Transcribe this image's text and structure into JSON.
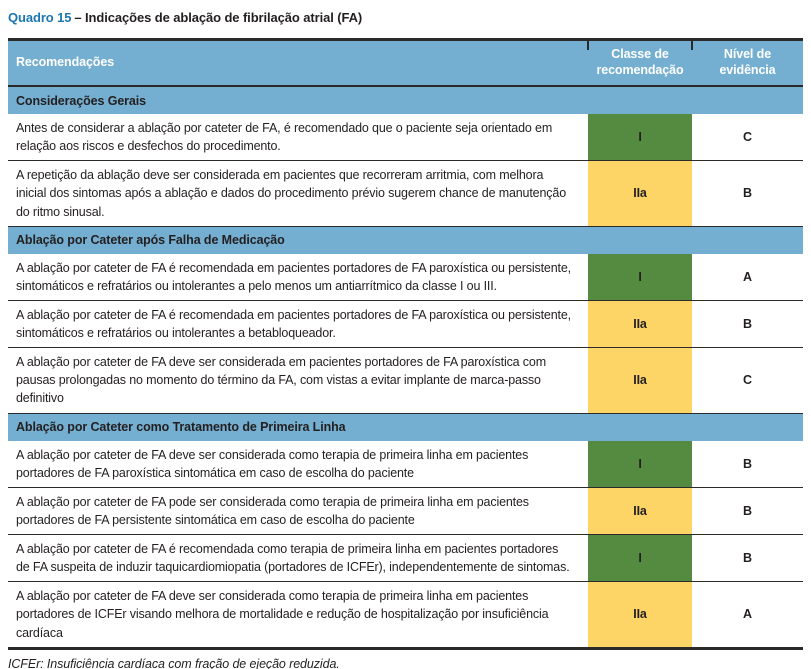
{
  "title": {
    "label": "Quadro 15",
    "text": "– Indicações de ablação de fibrilação atrial (FA)"
  },
  "colors": {
    "header_blue": "#74aed0",
    "title_blue": "#1b76b1",
    "border_dark": "#2b2a2a",
    "header_text": "#ffffff",
    "body_text": "#231f20"
  },
  "class_colors": {
    "I": "#558b40",
    "IIa": "#fdd566"
  },
  "table": {
    "headers": {
      "recommendations": "Recomendações",
      "class": "Classe de recomendação",
      "evidence": "Nível de evidência"
    },
    "sections": [
      {
        "title": "Considerações Gerais",
        "rows": [
          {
            "text": "Antes de considerar a ablação por cateter de FA, é recomendado que o paciente seja orientado em relação aos riscos e desfechos do procedimento.",
            "class": "I",
            "evidence": "C"
          },
          {
            "text": "A repetição da ablação deve ser considerada em pacientes que recorreram arritmia, com melhora inicial dos sintomas após a ablação e dados do procedimento prévio sugerem chance de manutenção do ritmo sinusal.",
            "class": "IIa",
            "evidence": "B"
          }
        ]
      },
      {
        "title": "Ablação por Cateter após Falha de Medicação",
        "rows": [
          {
            "text": "A ablação por cateter de FA é recomendada em pacientes portadores de FA paroxística ou persistente, sintomáticos e refratários ou intolerantes a pelo menos um antiarrítmico da classe I ou III.",
            "class": "I",
            "evidence": "A"
          },
          {
            "text": "A ablação por cateter de FA é recomendada em pacientes portadores de FA paroxística ou persistente, sintomáticos e refratários ou intolerantes a betabloqueador.",
            "class": "IIa",
            "evidence": "B"
          },
          {
            "text": "A ablação por cateter de FA deve ser considerada em pacientes portadores de FA paroxística com pausas prolongadas no momento do término da FA, com vistas a evitar implante de marca-passo definitivo",
            "class": "IIa",
            "evidence": "C"
          }
        ]
      },
      {
        "title": "Ablação por Cateter como Tratamento de Primeira Linha",
        "rows": [
          {
            "text": "A ablação por cateter de FA deve ser considerada como terapia de primeira linha em pacientes portadores de FA paroxística sintomática em caso de escolha do paciente",
            "class": "I",
            "evidence": "B"
          },
          {
            "text": "A ablação por cateter de FA pode ser considerada como terapia de primeira linha em pacientes portadores de FA persistente sintomática em caso de escolha do paciente",
            "class": "IIa",
            "evidence": "B"
          },
          {
            "text": "A ablação por cateter de FA é recomendada como terapia de primeira linha em pacientes portadores de FA suspeita de induzir taquicardiomiopatia (portadores de ICFEr), independentemente de sintomas.",
            "class": "I",
            "evidence": "B"
          },
          {
            "text": "A ablação por cateter de FA deve ser considerada como terapia de primeira linha em pacientes portadores de ICFEr visando melhora de mortalidade e redução de hospitalização por insuficiência cardíaca",
            "class": "IIa",
            "evidence": "A"
          }
        ]
      }
    ]
  },
  "footnote": "ICFEr: Insuficiência cardíaca com fração de ejeção reduzida."
}
